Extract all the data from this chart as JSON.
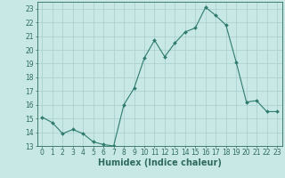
{
  "x": [
    0,
    1,
    2,
    3,
    4,
    5,
    6,
    7,
    8,
    9,
    10,
    11,
    12,
    13,
    14,
    15,
    16,
    17,
    18,
    19,
    20,
    21,
    22,
    23
  ],
  "y": [
    15.1,
    14.7,
    13.9,
    14.2,
    13.9,
    13.3,
    13.1,
    13.0,
    16.0,
    17.2,
    19.4,
    20.7,
    19.5,
    20.5,
    21.3,
    21.6,
    23.1,
    22.5,
    21.8,
    19.1,
    16.2,
    16.3,
    15.5,
    15.5
  ],
  "line_color": "#2e7b6e",
  "marker": "D",
  "marker_size": 2.0,
  "bg_color": "#c8e8e5",
  "grid_color": "#a8cece",
  "xlabel": "Humidex (Indice chaleur)",
  "xlim": [
    -0.5,
    23.5
  ],
  "ylim": [
    13,
    23.5
  ],
  "yticks": [
    13,
    14,
    15,
    16,
    17,
    18,
    19,
    20,
    21,
    22,
    23
  ],
  "xticks": [
    0,
    1,
    2,
    3,
    4,
    5,
    6,
    7,
    8,
    9,
    10,
    11,
    12,
    13,
    14,
    15,
    16,
    17,
    18,
    19,
    20,
    21,
    22,
    23
  ],
  "tick_color": "#2e6b5e",
  "label_fontsize": 5.5,
  "axis_label_fontsize": 7.0
}
